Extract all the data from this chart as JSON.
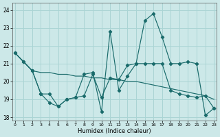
{
  "xlabel": "Humidex (Indice chaleur)",
  "background_color": "#cce8e8",
  "line_color": "#1a6b6b",
  "grid_color": "#aad4d4",
  "x_ticks": [
    0,
    1,
    2,
    3,
    4,
    5,
    6,
    7,
    8,
    9,
    10,
    11,
    12,
    13,
    14,
    15,
    16,
    17,
    18,
    19,
    20,
    21,
    22,
    23
  ],
  "y_ticks": [
    18,
    19,
    20,
    21,
    22,
    23,
    24
  ],
  "xlim": [
    -0.3,
    23.3
  ],
  "ylim": [
    17.8,
    24.4
  ],
  "line1_x": [
    0,
    1,
    2,
    3,
    4,
    5,
    6,
    7,
    8,
    9,
    10,
    11,
    12,
    13,
    14,
    15,
    16,
    17,
    18,
    19,
    20,
    21,
    22,
    23
  ],
  "line1_y": [
    21.6,
    21.1,
    20.6,
    19.3,
    18.8,
    18.6,
    19.0,
    19.1,
    20.4,
    20.5,
    18.3,
    22.8,
    19.5,
    20.3,
    21.0,
    23.4,
    23.8,
    22.5,
    21.0,
    21.0,
    21.1,
    21.0,
    18.1,
    18.5
  ],
  "line2_x": [
    0,
    2,
    3,
    4,
    5,
    6,
    7,
    8,
    9,
    10,
    11,
    12,
    13,
    14,
    15,
    16,
    17,
    18,
    19,
    20,
    21,
    22,
    23
  ],
  "line2_y": [
    21.6,
    20.6,
    20.5,
    20.5,
    20.4,
    20.4,
    20.3,
    20.3,
    20.2,
    20.2,
    20.1,
    20.1,
    20.0,
    20.0,
    19.9,
    19.8,
    19.7,
    19.6,
    19.5,
    19.4,
    19.3,
    19.2,
    19.0
  ],
  "line3_x": [
    0,
    1,
    2,
    3,
    4,
    5,
    6,
    7,
    8,
    9,
    10,
    11,
    12,
    13,
    14,
    15,
    16,
    17,
    18,
    19,
    20,
    21,
    22,
    23
  ],
  "line3_y": [
    21.6,
    21.1,
    20.6,
    19.3,
    19.3,
    18.6,
    19.0,
    19.1,
    19.2,
    20.4,
    19.1,
    20.2,
    20.1,
    20.9,
    21.0,
    21.0,
    21.0,
    21.0,
    19.5,
    19.3,
    19.2,
    19.1,
    19.2,
    18.5
  ]
}
